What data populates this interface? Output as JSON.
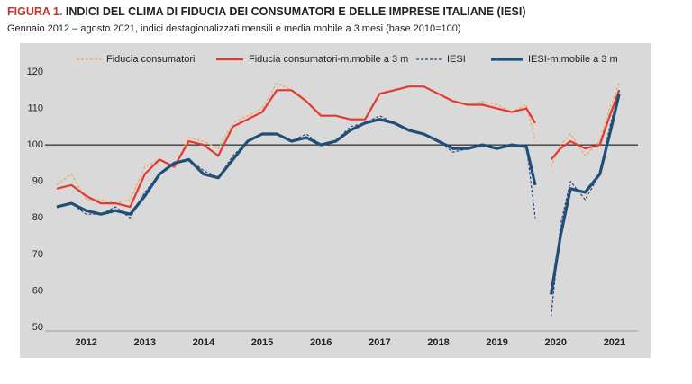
{
  "chart_data": {
    "type": "line",
    "title_prefix": "FIGURA 1.",
    "title": "INDICI DEL CLIMA DI FIDUCIA DEI CONSUMATORI E DELLE IMPRESE ITALIANE (IESI)",
    "subtitle": "Gennaio 2012 – agosto 2021, indici destagionalizzati mensili e media mobile a 3 mesi (base 2010=100)",
    "x": [
      2012.0,
      2012.25,
      2012.5,
      2012.75,
      2013.0,
      2013.25,
      2013.5,
      2013.75,
      2014.0,
      2014.25,
      2014.5,
      2014.75,
      2015.0,
      2015.25,
      2015.5,
      2015.75,
      2016.0,
      2016.25,
      2016.5,
      2016.75,
      2017.0,
      2017.25,
      2017.5,
      2017.75,
      2018.0,
      2018.25,
      2018.5,
      2018.75,
      2019.0,
      2019.25,
      2019.5,
      2019.75,
      2020.0,
      2020.15,
      2020.3,
      2020.42,
      2020.58,
      2020.75,
      2021.0,
      2021.25,
      2021.42,
      2021.58
    ],
    "series": [
      {
        "name": "Fiducia consumatori",
        "color": "#f2a25c",
        "dashed": true,
        "width": 1.2,
        "values": [
          89,
          92,
          85,
          85,
          84,
          85,
          94,
          96,
          94,
          102,
          101,
          99,
          106,
          108,
          110,
          117,
          115,
          112,
          108,
          108,
          107,
          107,
          114,
          115,
          116,
          116,
          114,
          112,
          111,
          112,
          111,
          109,
          111,
          101,
          null,
          94,
          100,
          103,
          97,
          101,
          110,
          117
        ]
      },
      {
        "name": "Fiducia consumatori-m.mobile a 3 m",
        "color": "#e3392f",
        "dashed": false,
        "width": 2.2,
        "values": [
          88,
          89,
          86,
          84,
          84,
          83,
          92,
          96,
          94,
          101,
          100,
          97,
          105,
          107,
          109,
          115,
          115,
          112,
          108,
          108,
          107,
          107,
          114,
          115,
          116,
          116,
          114,
          112,
          111,
          111,
          110,
          109,
          110,
          106,
          null,
          96,
          99,
          101,
          99,
          100,
          108,
          115
        ]
      },
      {
        "name": "IESI",
        "color": "#2a4778",
        "dashed": true,
        "width": 1.2,
        "values": [
          83,
          84,
          81,
          81,
          83,
          80,
          87,
          92,
          95,
          96,
          93,
          91,
          97,
          101,
          103,
          103,
          101,
          103,
          100,
          101,
          105,
          106,
          108,
          106,
          104,
          103,
          101,
          98,
          99,
          100,
          99,
          100,
          100,
          80,
          null,
          53,
          78,
          90,
          85,
          92,
          105,
          115
        ]
      },
      {
        "name": "IESI-m.mobile a 3 m",
        "color": "#1f4e79",
        "dashed": false,
        "width": 3.2,
        "values": [
          83,
          84,
          82,
          81,
          82,
          81,
          86,
          92,
          95,
          96,
          92,
          91,
          96,
          101,
          103,
          103,
          101,
          102,
          100,
          101,
          104,
          106,
          107,
          106,
          104,
          103,
          101,
          99,
          99,
          100,
          99,
          100,
          99.5,
          89,
          null,
          59,
          75,
          88,
          87,
          92,
          103,
          114
        ]
      }
    ],
    "xlim": [
      2011.8,
      2021.9
    ],
    "xticks": [
      {
        "value": 2012.5,
        "label": "2012"
      },
      {
        "value": 2013.5,
        "label": "2013"
      },
      {
        "value": 2014.5,
        "label": "2014"
      },
      {
        "value": 2015.5,
        "label": "2015"
      },
      {
        "value": 2016.5,
        "label": "2016"
      },
      {
        "value": 2017.5,
        "label": "2017"
      },
      {
        "value": 2018.5,
        "label": "2018"
      },
      {
        "value": 2019.5,
        "label": "2019"
      },
      {
        "value": 2020.5,
        "label": "2020"
      },
      {
        "value": 2021.5,
        "label": "2021"
      }
    ],
    "ylim": [
      50,
      120
    ],
    "yticks": [
      50,
      60,
      70,
      80,
      90,
      100,
      110,
      120
    ],
    "reference_line": 100
  }
}
